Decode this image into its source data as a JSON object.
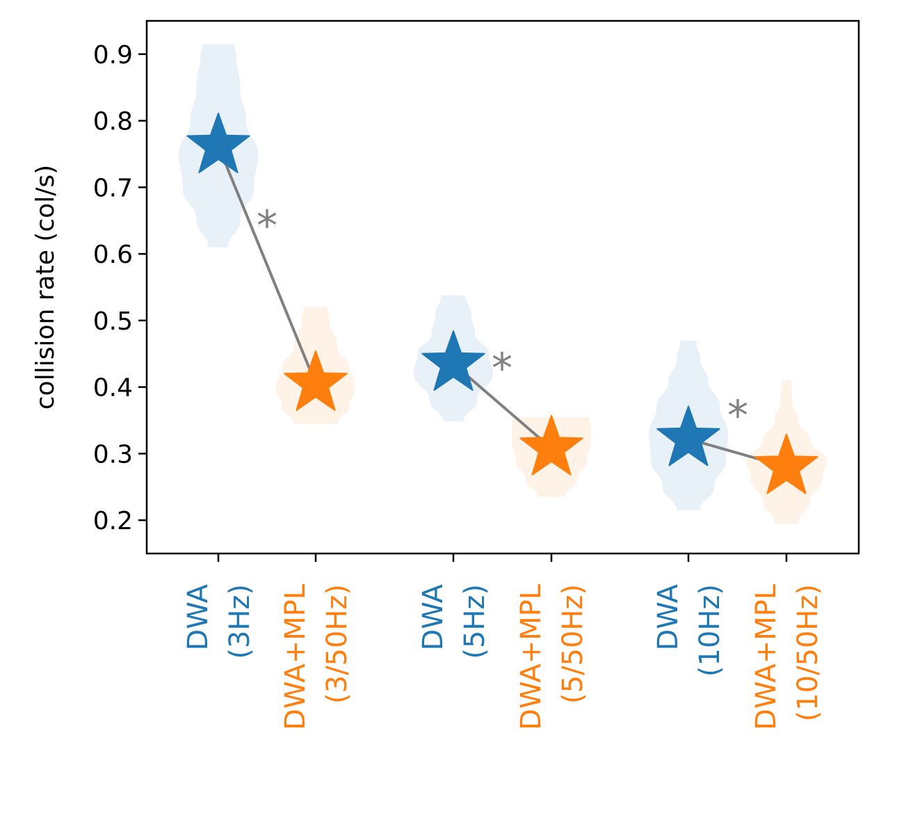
{
  "chart_data": {
    "type": "violin",
    "ylabel": "collision rate (col/s)",
    "ylim": [
      0.15,
      0.95
    ],
    "yticks": [
      "0.2",
      "0.3",
      "0.4",
      "0.5",
      "0.6",
      "0.7",
      "0.8",
      "0.9"
    ],
    "grid": false,
    "colors": {
      "DWA": "#1f77b4",
      "DWA+MPL": "#ff7f0e",
      "connector": "#808080"
    },
    "groups": [
      {
        "significance": "*",
        "items": [
          {
            "label": [
              "DWA",
              "(3Hz)"
            ],
            "series": "DWA",
            "median": 0.762,
            "min": 0.61,
            "max": 0.915,
            "violin": [
              [
                0.61,
                0.25
              ],
              [
                0.65,
                0.55
              ],
              [
                0.7,
                0.9
              ],
              [
                0.75,
                1.0
              ],
              [
                0.8,
                0.7
              ],
              [
                0.85,
                0.55
              ],
              [
                0.9,
                0.45
              ],
              [
                0.915,
                0.4
              ]
            ]
          },
          {
            "label": [
              "DWA+MPL",
              "(3/50Hz)"
            ],
            "series": "DWA+MPL",
            "median": 0.405,
            "min": 0.345,
            "max": 0.52,
            "violin": [
              [
                0.345,
                0.55
              ],
              [
                0.37,
                0.85
              ],
              [
                0.4,
                1.0
              ],
              [
                0.43,
                0.85
              ],
              [
                0.46,
                0.55
              ],
              [
                0.5,
                0.35
              ],
              [
                0.52,
                0.3
              ]
            ]
          }
        ]
      },
      {
        "significance": "*",
        "items": [
          {
            "label": [
              "DWA",
              "(5Hz)"
            ],
            "series": "DWA",
            "median": 0.435,
            "min": 0.348,
            "max": 0.538,
            "violin": [
              [
                0.348,
                0.25
              ],
              [
                0.38,
                0.6
              ],
              [
                0.42,
                1.0
              ],
              [
                0.45,
                0.9
              ],
              [
                0.48,
                0.55
              ],
              [
                0.51,
                0.45
              ],
              [
                0.538,
                0.3
              ]
            ]
          },
          {
            "label": [
              "DWA+MPL",
              "(5/50Hz)"
            ],
            "series": "DWA+MPL",
            "median": 0.308,
            "min": 0.235,
            "max": 0.355,
            "violin": [
              [
                0.235,
                0.35
              ],
              [
                0.26,
                0.65
              ],
              [
                0.29,
                0.9
              ],
              [
                0.32,
                1.0
              ],
              [
                0.34,
                1.0
              ],
              [
                0.355,
                0.95
              ]
            ]
          }
        ]
      },
      {
        "significance": "*",
        "items": [
          {
            "label": [
              "DWA",
              "(10Hz)"
            ],
            "series": "DWA",
            "median": 0.322,
            "min": 0.215,
            "max": 0.47,
            "violin": [
              [
                0.215,
                0.3
              ],
              [
                0.25,
                0.65
              ],
              [
                0.29,
                0.95
              ],
              [
                0.33,
                1.0
              ],
              [
                0.37,
                0.8
              ],
              [
                0.41,
                0.5
              ],
              [
                0.44,
                0.3
              ],
              [
                0.47,
                0.2
              ]
            ]
          },
          {
            "label": [
              "DWA+MPL",
              "(10/50Hz)"
            ],
            "series": "DWA+MPL",
            "median": 0.28,
            "min": 0.195,
            "max": 0.41,
            "violin": [
              [
                0.195,
                0.3
              ],
              [
                0.23,
                0.6
              ],
              [
                0.26,
                0.9
              ],
              [
                0.29,
                1.0
              ],
              [
                0.32,
                0.6
              ],
              [
                0.35,
                0.3
              ],
              [
                0.38,
                0.15
              ],
              [
                0.41,
                0.12
              ]
            ]
          }
        ]
      }
    ]
  }
}
